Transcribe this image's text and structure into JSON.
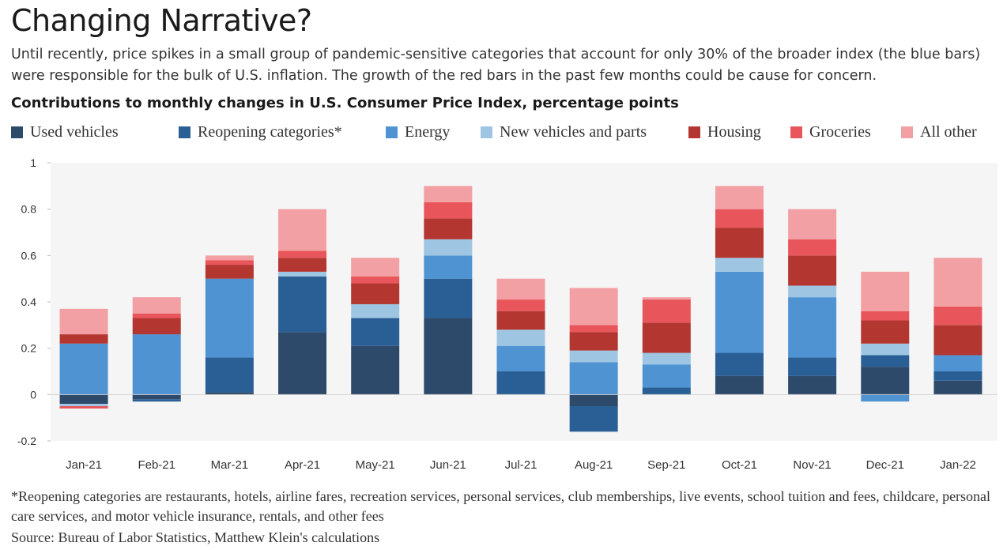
{
  "header": {
    "title": "Changing Narrative?",
    "subtitle": "Until recently, price spikes in a small group of pandemic-sensitive categories that account for only 30% of the broader index (the blue bars) were responsible for the bulk of U.S. inflation. The growth of the red bars in the past few months could be cause for concern.",
    "chart_heading": "Contributions to monthly changes in U.S. Consumer Price Index, percentage points"
  },
  "footer": {
    "footnote": "*Reopening categories are restaurants, hotels, airline fares, recreation services, personal services,  club memberships, live events, school tuition and fees, childcare, personal care services, and motor vehicle insurance, rentals, and other fees",
    "source": "Source: Bureau of Labor Statistics, Matthew Klein's calculations"
  },
  "chart_data": {
    "type": "bar",
    "stacked": true,
    "categories": [
      "Jan-21",
      "Feb-21",
      "Mar-21",
      "Apr-21",
      "May-21",
      "Jun-21",
      "Jul-21",
      "Aug-21",
      "Sep-21",
      "Oct-21",
      "Nov-21",
      "Dec-21",
      "Jan-22"
    ],
    "series": [
      {
        "name": "Used vehicles",
        "color": "#2e4a6b",
        "values": [
          -0.04,
          -0.02,
          0.01,
          0.27,
          0.21,
          0.33,
          0.0,
          -0.05,
          0.0,
          0.08,
          0.08,
          0.12,
          0.06
        ]
      },
      {
        "name": "Reopening categories*",
        "color": "#2a5f96",
        "values": [
          0.0,
          -0.01,
          0.15,
          0.24,
          0.12,
          0.17,
          0.1,
          -0.11,
          0.03,
          0.1,
          0.08,
          0.05,
          0.04
        ]
      },
      {
        "name": "Energy",
        "color": "#4f93d2",
        "values": [
          0.22,
          0.26,
          0.34,
          0.0,
          0.0,
          0.1,
          0.11,
          0.14,
          0.1,
          0.35,
          0.26,
          -0.03,
          0.07
        ]
      },
      {
        "name": "New vehicles and parts",
        "color": "#9ec6e2",
        "values": [
          -0.01,
          0.0,
          0.0,
          0.02,
          0.06,
          0.07,
          0.07,
          0.05,
          0.05,
          0.06,
          0.05,
          0.05,
          0.0
        ]
      },
      {
        "name": "Housing",
        "color": "#b33630",
        "values": [
          0.04,
          0.07,
          0.06,
          0.06,
          0.09,
          0.09,
          0.08,
          0.08,
          0.13,
          0.13,
          0.13,
          0.1,
          0.13
        ]
      },
      {
        "name": "Groceries",
        "color": "#e8555a",
        "values": [
          -0.01,
          0.02,
          0.02,
          0.03,
          0.03,
          0.07,
          0.05,
          0.03,
          0.1,
          0.08,
          0.07,
          0.04,
          0.08
        ]
      },
      {
        "name": "All other",
        "color": "#f2a0a3",
        "values": [
          0.11,
          0.07,
          0.02,
          0.18,
          0.08,
          0.07,
          0.09,
          0.16,
          0.01,
          0.1,
          0.13,
          0.17,
          0.21
        ]
      }
    ],
    "ylim": [
      -0.2,
      1
    ],
    "yticks": [
      -0.2,
      0,
      0.2,
      0.4,
      0.6,
      0.8,
      1
    ],
    "ytick_labels": [
      "-0.2",
      "0",
      "0.2",
      "0.4",
      "0.6",
      "0.8",
      "1"
    ],
    "grid": false,
    "legend": "top",
    "background": "#f5f5f5"
  }
}
